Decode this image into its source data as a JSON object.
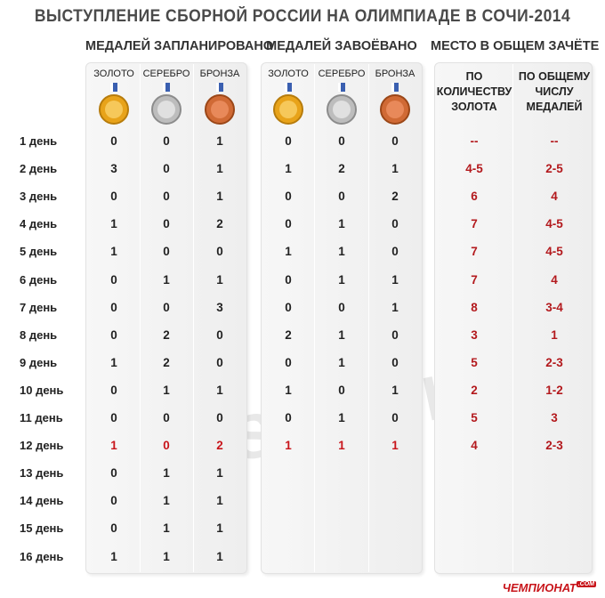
{
  "title": "ВЫСТУПЛЕНИЕ СБОРНОЙ РОССИИ НА ОЛИМПИАДЕ В СОЧИ-2014",
  "groups": {
    "planned": "МЕДАЛЕЙ ЗАПЛАНИРОВАНО",
    "won": "МЕДАЛЕЙ ЗАВОЁВАНО",
    "place": "МЕСТО В ОБЩЕМ ЗАЧЁТЕ"
  },
  "medals": {
    "gold": "ЗОЛОТО",
    "silver": "СЕРЕБРО",
    "bronze": "БРОНЗА"
  },
  "rank_headers": {
    "by_gold": "ПО КОЛИЧЕСТВУ ЗОЛОТА",
    "by_total": "ПО ОБЩЕМУ ЧИСЛУ МЕДАЛЕЙ"
  },
  "colors": {
    "gold": "#e8a31a",
    "silver": "#bdbdbd",
    "bronze": "#d06a35",
    "highlight": "#c8151b"
  },
  "watermark": "SOCHI 2014",
  "logo": "ЧЕМПИОНАТ",
  "logo_suffix": ".COM",
  "chart_data": {
    "type": "table",
    "columns": [
      "МЕДАЛЕЙ ЗАПЛАНИРОВАНО: ЗОЛОТО",
      "СЕРЕБРО",
      "БРОНЗА",
      "МЕДАЛЕЙ ЗАВОЁВАНО: ЗОЛОТО",
      "СЕРЕБРО",
      "БРОНЗА",
      "ПО КОЛИЧЕСТВУ ЗОЛОТА",
      "ПО ОБЩЕМУ ЧИСЛУ МЕДАЛЕЙ"
    ],
    "highlight_row": 11,
    "rows": [
      {
        "day": "1 день",
        "planned": [
          "0",
          "0",
          "1"
        ],
        "won": [
          "0",
          "0",
          "0"
        ],
        "place": [
          "--",
          "--"
        ]
      },
      {
        "day": "2 день",
        "planned": [
          "3",
          "0",
          "1"
        ],
        "won": [
          "1",
          "2",
          "1"
        ],
        "place": [
          "4-5",
          "2-5"
        ]
      },
      {
        "day": "3 день",
        "planned": [
          "0",
          "0",
          "1"
        ],
        "won": [
          "0",
          "0",
          "2"
        ],
        "place": [
          "6",
          "4"
        ]
      },
      {
        "day": "4 день",
        "planned": [
          "1",
          "0",
          "2"
        ],
        "won": [
          "0",
          "1",
          "0"
        ],
        "place": [
          "7",
          "4-5"
        ]
      },
      {
        "day": "5 день",
        "planned": [
          "1",
          "0",
          "0"
        ],
        "won": [
          "1",
          "1",
          "0"
        ],
        "place": [
          "7",
          "4-5"
        ]
      },
      {
        "day": "6 день",
        "planned": [
          "0",
          "1",
          "1"
        ],
        "won": [
          "0",
          "1",
          "1"
        ],
        "place": [
          "7",
          "4"
        ]
      },
      {
        "day": "7 день",
        "planned": [
          "0",
          "0",
          "3"
        ],
        "won": [
          "0",
          "0",
          "1"
        ],
        "place": [
          "8",
          "3-4"
        ]
      },
      {
        "day": "8 день",
        "planned": [
          "0",
          "2",
          "0"
        ],
        "won": [
          "2",
          "1",
          "0"
        ],
        "place": [
          "3",
          "1"
        ]
      },
      {
        "day": "9 день",
        "planned": [
          "1",
          "2",
          "0"
        ],
        "won": [
          "0",
          "1",
          "0"
        ],
        "place": [
          "5",
          "2-3"
        ]
      },
      {
        "day": "10 день",
        "planned": [
          "0",
          "1",
          "1"
        ],
        "won": [
          "1",
          "0",
          "1"
        ],
        "place": [
          "2",
          "1-2"
        ]
      },
      {
        "day": "11 день",
        "planned": [
          "0",
          "0",
          "0"
        ],
        "won": [
          "0",
          "1",
          "0"
        ],
        "place": [
          "5",
          "3"
        ]
      },
      {
        "day": "12 день",
        "planned": [
          "1",
          "0",
          "2"
        ],
        "won": [
          "1",
          "1",
          "1"
        ],
        "place": [
          "4",
          "2-3"
        ]
      },
      {
        "day": "13 день",
        "planned": [
          "0",
          "1",
          "1"
        ],
        "won": [],
        "place": []
      },
      {
        "day": "14 день",
        "planned": [
          "0",
          "1",
          "1"
        ],
        "won": [],
        "place": []
      },
      {
        "day": "15 день",
        "planned": [
          "0",
          "1",
          "1"
        ],
        "won": [],
        "place": []
      },
      {
        "day": "16 день",
        "planned": [
          "1",
          "1",
          "1"
        ],
        "won": [],
        "place": []
      }
    ]
  }
}
